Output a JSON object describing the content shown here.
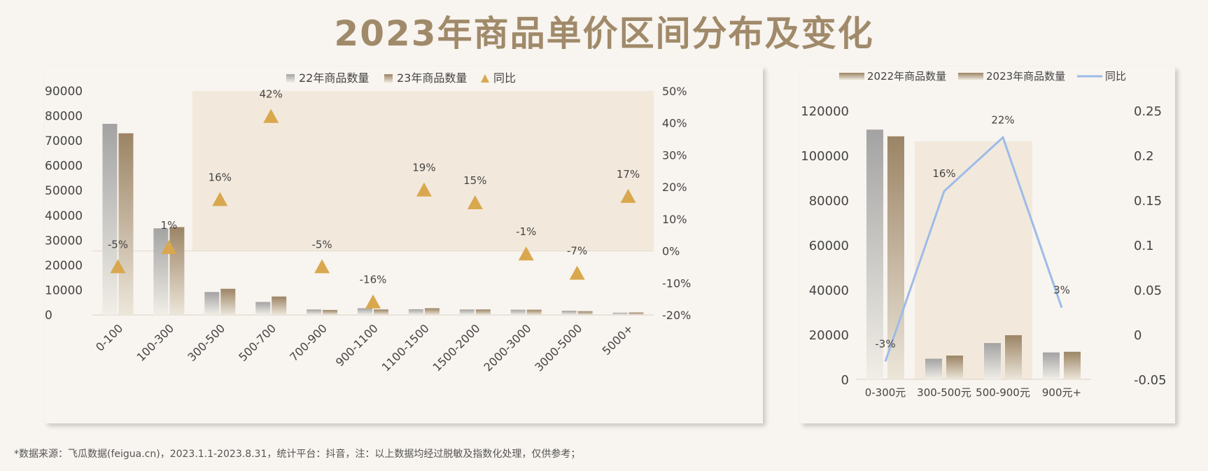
{
  "title": "2023年商品单价区间分布及变化",
  "footnote": "*数据来源：飞瓜数据(feigua.cn)，2023.1.1-2023.8.31，统计平台：抖音，注：以上数据均经过脱敏及指数化处理，仅供参考；",
  "colors": {
    "bar22_top": "#a3a3a3",
    "bar22_bottom": "#f1eee7",
    "bar23_top": "#9c8465",
    "bar23_bottom": "#ece6da",
    "triangle": "#d9a84e",
    "line": "#9dbbe8",
    "highlight": "#f2e9dc"
  },
  "chart_data": [
    {
      "type": "bar",
      "legend_placement": "top-center",
      "legend": [
        "22年商品数量",
        "23年商品数量",
        "同比"
      ],
      "categories": [
        "0-100",
        "100-300",
        "300-500",
        "500-700",
        "700-900",
        "900-1100",
        "1100-1500",
        "1500-2000",
        "2000-3000",
        "3000-5000",
        "5000+"
      ],
      "series": [
        {
          "name": "22年商品数量",
          "type": "bar",
          "values": [
            76800,
            34800,
            9200,
            5200,
            2200,
            2700,
            2300,
            2200,
            2100,
            1700,
            900
          ]
        },
        {
          "name": "23年商品数量",
          "type": "bar",
          "values": [
            73000,
            35300,
            10500,
            7400,
            2000,
            2200,
            2700,
            2200,
            2100,
            1500,
            1000
          ]
        },
        {
          "name": "同比",
          "type": "scatter",
          "axis": "right",
          "values": [
            -5,
            1,
            16,
            42,
            -5,
            -16,
            19,
            15,
            -1,
            -7,
            17
          ],
          "labels": [
            "-5%",
            "1%",
            "16%",
            "42%",
            "-5%",
            "-16%",
            "19%",
            "15%",
            "-1%",
            "-7%",
            "17%"
          ]
        }
      ],
      "ylim": [
        0,
        90000
      ],
      "yticks": [
        "90000",
        "80000",
        "70000",
        "60000",
        "50000",
        "40000",
        "30000",
        "20000",
        "10000",
        "0"
      ],
      "y2lim": [
        -20,
        50
      ],
      "y2ticks": [
        "50%",
        "40%",
        "30%",
        "20%",
        "10%",
        "0%",
        "-10%",
        "-20%"
      ],
      "highlight_range": [
        "300-500",
        "5000+"
      ]
    },
    {
      "type": "bar",
      "legend_placement": "top-center",
      "legend": [
        "2022年商品数量",
        "2023年商品数量",
        "同比"
      ],
      "categories": [
        "0-300元",
        "300-500元",
        "500-900元",
        "900元+"
      ],
      "series": [
        {
          "name": "2022年商品数量",
          "type": "bar",
          "values": [
            111500,
            9200,
            16200,
            12000
          ]
        },
        {
          "name": "2023年商品数量",
          "type": "bar",
          "values": [
            108500,
            10600,
            19700,
            12300
          ]
        },
        {
          "name": "同比",
          "type": "line",
          "axis": "right",
          "values": [
            -0.03,
            0.16,
            0.22,
            0.03
          ],
          "labels": [
            "-3%",
            "16%",
            "22%",
            "3%"
          ]
        }
      ],
      "ylim": [
        0,
        120000
      ],
      "yticks": [
        "120000",
        "100000",
        "80000",
        "60000",
        "40000",
        "20000",
        "0"
      ],
      "y2lim": [
        -0.05,
        0.25
      ],
      "y2ticks": [
        "0.25",
        "0.2",
        "0.15",
        "0.1",
        "0.05",
        "0",
        "-0.05"
      ],
      "highlight_range": [
        "300-500元",
        "500-900元"
      ]
    }
  ]
}
